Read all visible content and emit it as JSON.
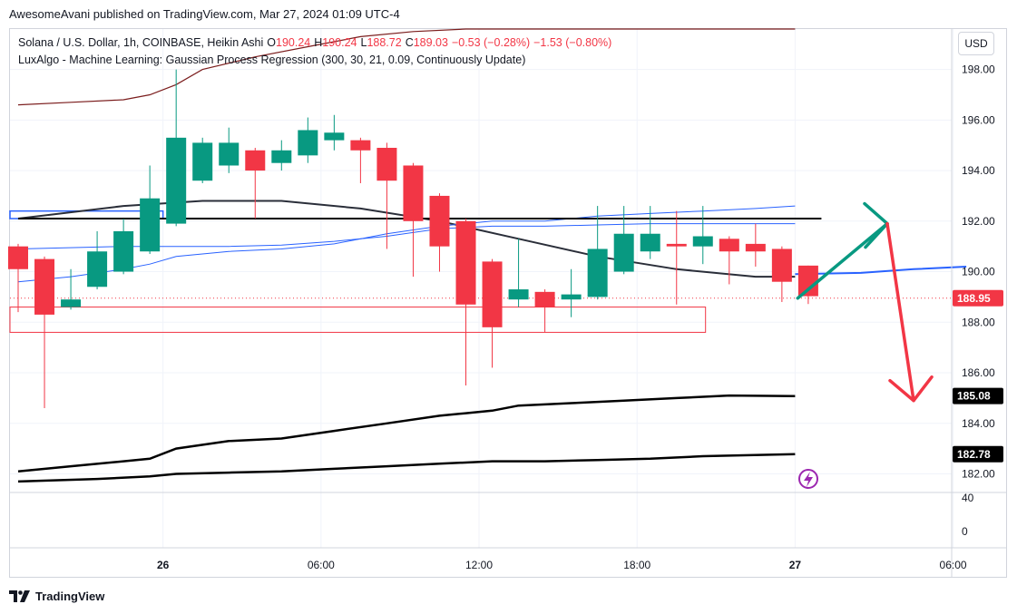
{
  "header": {
    "published_line": "AwesomeAvani published on TradingView.com, Mar 27, 2024 01:09 UTC-4"
  },
  "legend": {
    "symbol": "Solana / U.S. Dollar, 1h, COINBASE, Heikin Ashi",
    "o_label": "O",
    "o_value": "190.24",
    "h_label": "H",
    "h_value": "190.24",
    "l_label": "L",
    "l_value": "188.72",
    "c_label": "C",
    "c_value": "189.03",
    "change": "−0.53 (−0.28%)",
    "change2": "−1.53 (−0.80%)",
    "indicator": "LuxAlgo - Machine Learning: Gaussian Process Regression (300, 30, 21, 0.09, Continuously Update)"
  },
  "currency_button": "USD",
  "footer": {
    "brand": "TradingView"
  },
  "colors": {
    "up": "#089981",
    "down": "#f23645",
    "blue_line": "#2962ff",
    "dark_red_line": "#7b1d1d",
    "grid": "#f0f3fa",
    "black": "#000000",
    "arrow_green": "#089981",
    "arrow_red": "#f23645",
    "zone_border": "#f23645",
    "lightning": "#9c27b0"
  },
  "chart_data": {
    "type": "candlestick",
    "style": "Heikin Ashi",
    "ylim": [
      181.3,
      199.6
    ],
    "y_ticks": [
      "198.00",
      "196.00",
      "194.00",
      "192.00",
      "190.00",
      "188.00",
      "186.00",
      "184.00",
      "182.00"
    ],
    "x_ticks": [
      {
        "label": "26",
        "bar": 5.5
      },
      {
        "label": "06:00",
        "bar": 11.5
      },
      {
        "label": "12:00",
        "bar": 17.5
      },
      {
        "label": "18:00",
        "bar": 23.5
      },
      {
        "label": "27",
        "bar": 29.5
      },
      {
        "label": "06:00",
        "bar": 35.5
      }
    ],
    "candles": [
      {
        "o": 191.0,
        "h": 191.1,
        "l": 188.4,
        "c": 190.1
      },
      {
        "o": 190.5,
        "h": 190.6,
        "l": 184.6,
        "c": 188.3
      },
      {
        "o": 188.6,
        "h": 190.1,
        "l": 188.5,
        "c": 188.9
      },
      {
        "o": 189.4,
        "h": 191.6,
        "l": 189.3,
        "c": 190.8
      },
      {
        "o": 190.0,
        "h": 192.1,
        "l": 189.9,
        "c": 191.6
      },
      {
        "o": 190.8,
        "h": 194.2,
        "l": 190.7,
        "c": 192.9
      },
      {
        "o": 191.9,
        "h": 198.0,
        "l": 191.8,
        "c": 195.3
      },
      {
        "o": 193.6,
        "h": 195.3,
        "l": 193.5,
        "c": 195.1
      },
      {
        "o": 194.2,
        "h": 195.7,
        "l": 193.9,
        "c": 195.1
      },
      {
        "o": 194.8,
        "h": 194.9,
        "l": 192.1,
        "c": 194.0
      },
      {
        "o": 194.3,
        "h": 195.2,
        "l": 194.0,
        "c": 194.8
      },
      {
        "o": 194.6,
        "h": 196.1,
        "l": 194.3,
        "c": 195.6
      },
      {
        "o": 195.2,
        "h": 196.2,
        "l": 194.8,
        "c": 195.5
      },
      {
        "o": 195.2,
        "h": 195.3,
        "l": 193.5,
        "c": 194.8
      },
      {
        "o": 194.9,
        "h": 195.1,
        "l": 190.9,
        "c": 193.6
      },
      {
        "o": 194.2,
        "h": 194.3,
        "l": 189.8,
        "c": 192.0
      },
      {
        "o": 193.0,
        "h": 193.1,
        "l": 190.0,
        "c": 191.0
      },
      {
        "o": 192.0,
        "h": 192.1,
        "l": 185.5,
        "c": 188.7
      },
      {
        "o": 190.4,
        "h": 190.5,
        "l": 186.2,
        "c": 187.8
      },
      {
        "o": 188.9,
        "h": 191.3,
        "l": 188.6,
        "c": 189.3
      },
      {
        "o": 189.2,
        "h": 189.3,
        "l": 187.6,
        "c": 188.6
      },
      {
        "o": 188.9,
        "h": 190.1,
        "l": 188.2,
        "c": 189.1
      },
      {
        "o": 189.0,
        "h": 192.6,
        "l": 188.9,
        "c": 190.9
      },
      {
        "o": 190.0,
        "h": 192.6,
        "l": 189.9,
        "c": 191.5
      },
      {
        "o": 190.8,
        "h": 192.6,
        "l": 190.5,
        "c": 191.5
      },
      {
        "o": 191.1,
        "h": 192.4,
        "l": 188.7,
        "c": 191.0
      },
      {
        "o": 191.0,
        "h": 192.6,
        "l": 190.3,
        "c": 191.4
      },
      {
        "o": 191.3,
        "h": 191.4,
        "l": 189.5,
        "c": 190.8
      },
      {
        "o": 191.1,
        "h": 191.9,
        "l": 190.2,
        "c": 190.8
      },
      {
        "o": 190.9,
        "h": 191.0,
        "l": 188.8,
        "c": 189.6
      },
      {
        "o": 190.24,
        "h": 190.24,
        "l": 188.72,
        "c": 189.03
      }
    ],
    "last_price": {
      "value": 188.95,
      "label": "188.95"
    },
    "lines": {
      "gpr_center": {
        "color": "#2a2e39",
        "points": [
          [
            0,
            192.1
          ],
          [
            4,
            192.6
          ],
          [
            7,
            192.8
          ],
          [
            10,
            192.8
          ],
          [
            13,
            192.5
          ],
          [
            16,
            192.0
          ],
          [
            19,
            191.3
          ],
          [
            22,
            190.6
          ],
          [
            25,
            190.1
          ],
          [
            28,
            189.8
          ],
          [
            29.5,
            189.8
          ]
        ]
      },
      "gpr_forecast": {
        "color": "#2962ff",
        "points": [
          [
            29.5,
            189.9
          ],
          [
            32,
            189.95
          ],
          [
            34,
            190.1
          ],
          [
            36,
            190.2
          ]
        ]
      },
      "upper_band_dark": {
        "color": "#7b1d1d",
        "points": [
          [
            0,
            196.6
          ],
          [
            2,
            196.7
          ],
          [
            4,
            196.8
          ],
          [
            5,
            197.0
          ],
          [
            6,
            197.4
          ],
          [
            7,
            198.0
          ],
          [
            9,
            198.5
          ],
          [
            11,
            198.9
          ],
          [
            13,
            199.3
          ],
          [
            15,
            199.5
          ],
          [
            17,
            199.6
          ],
          [
            20,
            199.6
          ],
          [
            23,
            199.6
          ],
          [
            26,
            199.6
          ],
          [
            29.5,
            199.6
          ]
        ]
      },
      "upper_blue": {
        "color": "#2962ff",
        "points": [
          [
            0,
            189.6
          ],
          [
            2,
            189.8
          ],
          [
            4,
            190.1
          ],
          [
            5,
            190.3
          ],
          [
            6,
            190.6
          ],
          [
            8,
            190.8
          ],
          [
            10,
            190.9
          ],
          [
            12,
            191.1
          ],
          [
            14,
            191.5
          ],
          [
            16,
            191.8
          ],
          [
            18,
            192.0
          ],
          [
            20,
            192.0
          ],
          [
            22,
            192.2
          ],
          [
            24,
            192.3
          ],
          [
            26,
            192.4
          ],
          [
            28,
            192.5
          ],
          [
            29.5,
            192.6
          ]
        ]
      },
      "mid_blue": {
        "color": "#2962ff",
        "points": [
          [
            0,
            190.9
          ],
          [
            4,
            191.0
          ],
          [
            8,
            191.0
          ],
          [
            10,
            191.05
          ],
          [
            12,
            191.2
          ],
          [
            14,
            191.4
          ],
          [
            16,
            191.7
          ],
          [
            18,
            191.8
          ],
          [
            20,
            191.8
          ],
          [
            22,
            191.85
          ],
          [
            24,
            191.9
          ],
          [
            26,
            191.9
          ],
          [
            29.5,
            191.9
          ]
        ]
      },
      "horizontal_black": {
        "color": "#000000",
        "points": [
          [
            0,
            192.1
          ],
          [
            30.5,
            192.1
          ]
        ]
      },
      "lower_black_1": {
        "color": "#000000",
        "points": [
          [
            0,
            182.1
          ],
          [
            2,
            182.3
          ],
          [
            4,
            182.5
          ],
          [
            5,
            182.6
          ],
          [
            6,
            183.0
          ],
          [
            8,
            183.3
          ],
          [
            10,
            183.4
          ],
          [
            12,
            183.7
          ],
          [
            14,
            184.0
          ],
          [
            16,
            184.3
          ],
          [
            17,
            184.4
          ],
          [
            18,
            184.5
          ],
          [
            19,
            184.7
          ],
          [
            21,
            184.8
          ],
          [
            23,
            184.9
          ],
          [
            25,
            185.0
          ],
          [
            27,
            185.1
          ],
          [
            29.5,
            185.08
          ]
        ]
      },
      "lower_black_2": {
        "color": "#000000",
        "points": [
          [
            0,
            181.7
          ],
          [
            3,
            181.8
          ],
          [
            5,
            181.9
          ],
          [
            6,
            182.0
          ],
          [
            8,
            182.05
          ],
          [
            10,
            182.1
          ],
          [
            12,
            182.2
          ],
          [
            14,
            182.3
          ],
          [
            16,
            182.4
          ],
          [
            18,
            182.5
          ],
          [
            20,
            182.5
          ],
          [
            22,
            182.55
          ],
          [
            24,
            182.6
          ],
          [
            26,
            182.7
          ],
          [
            29.5,
            182.78
          ]
        ]
      }
    },
    "price_labels": [
      {
        "value": 185.08,
        "label": "185.08"
      },
      {
        "value": 182.78,
        "label": "182.78"
      }
    ],
    "zone": {
      "x_from": 0,
      "x_to": 26.1,
      "y_top": 188.6,
      "y_bottom": 187.6
    },
    "blue_box": {
      "x_from": 0,
      "x_to": 5.5,
      "y_top": 192.4,
      "y_bottom": 192.1
    },
    "arrows": {
      "up": {
        "from": [
          29.6,
          188.95
        ],
        "to": [
          33,
          191.9
        ]
      },
      "down": {
        "from": [
          33,
          191.9
        ],
        "to": [
          34,
          184.9
        ]
      }
    },
    "osc_ticks": [
      "40",
      "0"
    ]
  }
}
